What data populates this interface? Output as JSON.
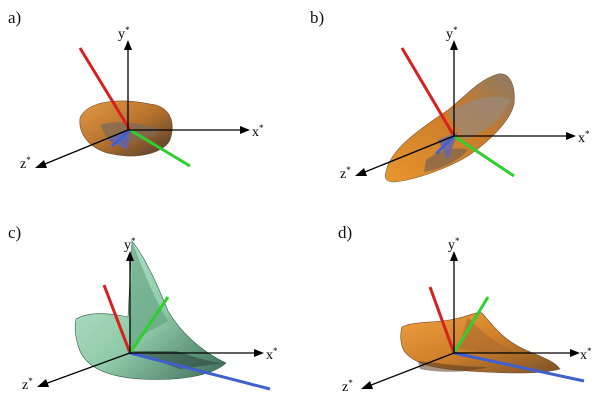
{
  "panels": [
    {
      "label": "a)",
      "surface_color": "#c9822f",
      "surface_dark": "#5b4634"
    },
    {
      "label": "b)",
      "surface_color": "#d88a2e",
      "surface_dark": "#7a6a58"
    },
    {
      "label": "c)",
      "surface_color": "#9ad3b3",
      "surface_dark": "#2f5a48"
    },
    {
      "label": "d)",
      "surface_color": "#dc8a2e",
      "surface_dark": "#6b4a2a"
    }
  ],
  "axes": {
    "x": "x",
    "y": "y",
    "z": "z",
    "sup": "*"
  },
  "colors": {
    "red": "#d82020",
    "green": "#2fcf2f",
    "blue": "#4060d0",
    "axis": "#000000"
  }
}
